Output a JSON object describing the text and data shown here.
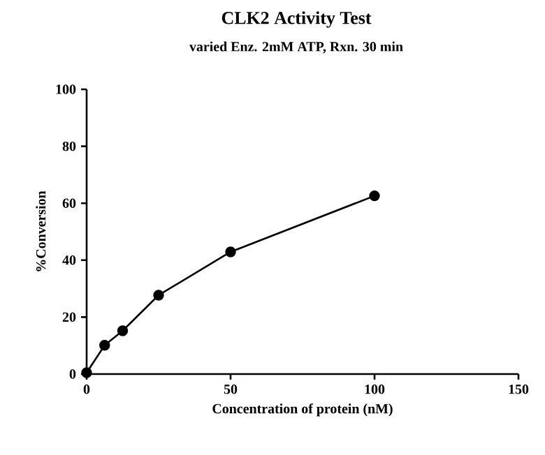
{
  "chart_data": {
    "type": "line",
    "title": "CLK2 Activity Test",
    "subtitle": "varied Enz. 2mM ATP, Rxn. 30 min",
    "xlabel": "Concentration of protein (nM)",
    "ylabel": "%Conversion",
    "x": [
      0,
      6.25,
      12.5,
      25,
      50,
      100
    ],
    "series": [
      {
        "color": "#000000",
        "values": [
          0.5,
          10.1,
          15.2,
          27.7,
          42.9,
          62.6
        ]
      }
    ],
    "xlim": [
      0,
      150
    ],
    "xticks": [
      0,
      50,
      100,
      150
    ],
    "ylim": [
      0,
      100
    ],
    "yticks": [
      0,
      20,
      40,
      60,
      80,
      100
    ],
    "marker": "circle",
    "line_style": "solid"
  }
}
